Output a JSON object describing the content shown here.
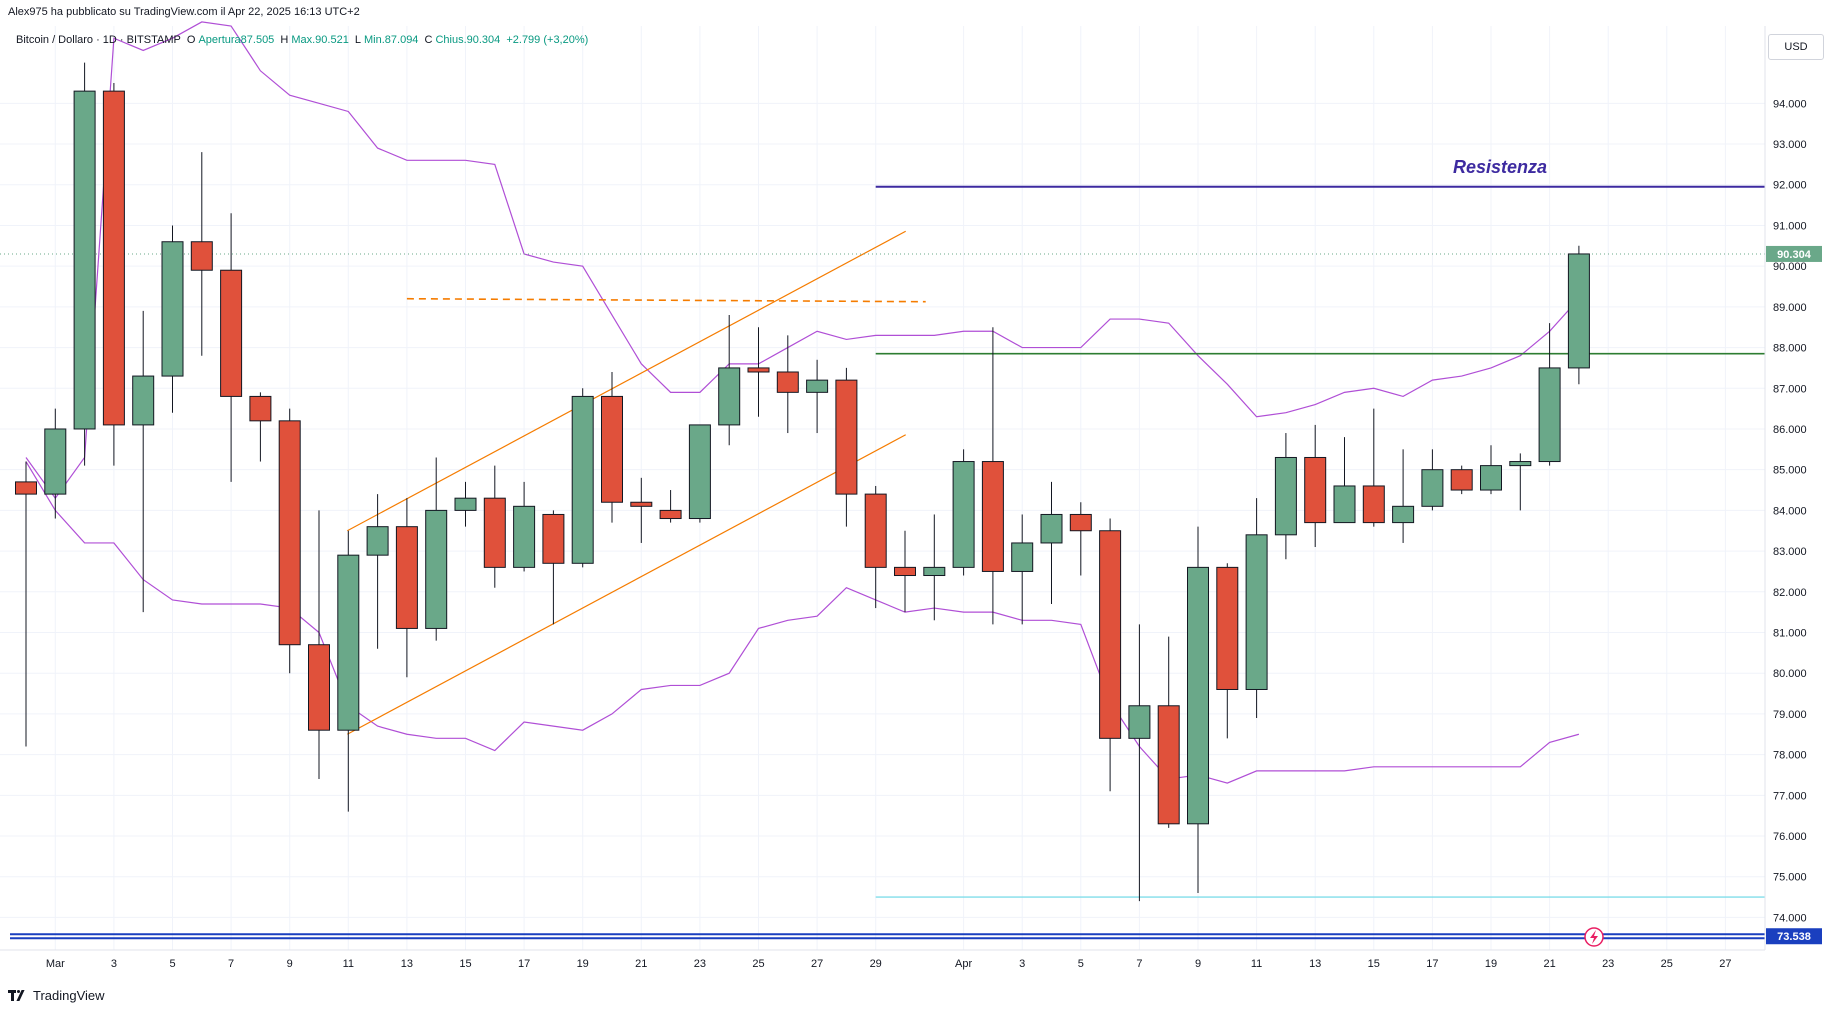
{
  "header": {
    "published": "Alex975 ha pubblicato su TradingView.com il Apr 22, 2025 16:13 UTC+2"
  },
  "legend": {
    "symbol": "Bitcoin / Dollaro · 1D · BITSTAMP",
    "open_label": "O",
    "open": "Apertura87.505",
    "high_label": "H",
    "high": "Max.90.521",
    "low_label": "L",
    "low": "Min.87.094",
    "close_label": "C",
    "close": "Chius.90.304",
    "change": "+2.799 (+3,20%)"
  },
  "currency": "USD",
  "footer": {
    "brand": "TradingView"
  },
  "colors": {
    "up": "#6aa889",
    "down": "#e0513b",
    "band": "#b04fd6",
    "channel": "#f57c00",
    "resistance": "#3d2aa0",
    "support": "#2e7d32",
    "low_line": "#80deea",
    "bottom_line": "#1a3fbf"
  },
  "chart_data": {
    "type": "candlestick",
    "y_unit": "thousand USD",
    "ylim": [
      73.2,
      95.9
    ],
    "yticks": [
      "94.000",
      "93.000",
      "92.000",
      "91.000",
      "90.000",
      "89.000",
      "88.000",
      "87.000",
      "86.000",
      "85.000",
      "84.000",
      "83.000",
      "82.000",
      "81.000",
      "80.000",
      "79.000",
      "78.000",
      "77.000",
      "76.000",
      "75.000",
      "74.000"
    ],
    "xticks": [
      "Mar",
      "3",
      "5",
      "7",
      "9",
      "11",
      "13",
      "15",
      "17",
      "19",
      "21",
      "23",
      "25",
      "27",
      "29",
      "Apr",
      "3",
      "5",
      "7",
      "9",
      "11",
      "13",
      "15",
      "17",
      "19",
      "21",
      "23",
      "25",
      "27"
    ],
    "candles": [
      {
        "d": "Feb 28",
        "o": 84.7,
        "h": 85.2,
        "l": 78.2,
        "c": 84.4
      },
      {
        "d": "Mar 1",
        "o": 84.4,
        "h": 86.5,
        "l": 83.8,
        "c": 86.0
      },
      {
        "d": "Mar 2",
        "o": 86.0,
        "h": 95.0,
        "l": 85.1,
        "c": 94.3
      },
      {
        "d": "Mar 3",
        "o": 94.3,
        "h": 94.5,
        "l": 85.1,
        "c": 86.1
      },
      {
        "d": "Mar 4",
        "o": 86.1,
        "h": 88.9,
        "l": 81.5,
        "c": 87.3
      },
      {
        "d": "Mar 5",
        "o": 87.3,
        "h": 91.0,
        "l": 86.4,
        "c": 90.6
      },
      {
        "d": "Mar 6",
        "o": 90.6,
        "h": 92.8,
        "l": 87.8,
        "c": 89.9
      },
      {
        "d": "Mar 7",
        "o": 89.9,
        "h": 91.3,
        "l": 84.7,
        "c": 86.8
      },
      {
        "d": "Mar 8",
        "o": 86.8,
        "h": 86.9,
        "l": 85.2,
        "c": 86.2
      },
      {
        "d": "Mar 9",
        "o": 86.2,
        "h": 86.5,
        "l": 80.0,
        "c": 80.7
      },
      {
        "d": "Mar 10",
        "o": 80.7,
        "h": 84.0,
        "l": 77.4,
        "c": 78.6
      },
      {
        "d": "Mar 11",
        "o": 78.6,
        "h": 83.5,
        "l": 76.6,
        "c": 82.9
      },
      {
        "d": "Mar 12",
        "o": 82.9,
        "h": 84.4,
        "l": 80.6,
        "c": 83.6
      },
      {
        "d": "Mar 13",
        "o": 83.6,
        "h": 84.3,
        "l": 79.9,
        "c": 81.1
      },
      {
        "d": "Mar 14",
        "o": 81.1,
        "h": 85.3,
        "l": 80.8,
        "c": 84.0
      },
      {
        "d": "Mar 15",
        "o": 84.0,
        "h": 84.7,
        "l": 83.6,
        "c": 84.3
      },
      {
        "d": "Mar 16",
        "o": 84.3,
        "h": 85.1,
        "l": 82.1,
        "c": 82.6
      },
      {
        "d": "Mar 17",
        "o": 82.6,
        "h": 84.7,
        "l": 82.5,
        "c": 84.1
      },
      {
        "d": "Mar 18",
        "o": 83.9,
        "h": 84.0,
        "l": 81.2,
        "c": 82.7
      },
      {
        "d": "Mar 19",
        "o": 82.7,
        "h": 87.0,
        "l": 82.6,
        "c": 86.8
      },
      {
        "d": "Mar 20",
        "o": 86.8,
        "h": 87.4,
        "l": 83.7,
        "c": 84.2
      },
      {
        "d": "Mar 21",
        "o": 84.2,
        "h": 84.8,
        "l": 83.2,
        "c": 84.1
      },
      {
        "d": "Mar 22",
        "o": 84.0,
        "h": 84.5,
        "l": 83.7,
        "c": 83.8
      },
      {
        "d": "Mar 23",
        "o": 83.8,
        "h": 86.1,
        "l": 83.7,
        "c": 86.1
      },
      {
        "d": "Mar 24",
        "o": 86.1,
        "h": 88.8,
        "l": 85.6,
        "c": 87.5
      },
      {
        "d": "Mar 25",
        "o": 87.5,
        "h": 88.5,
        "l": 86.3,
        "c": 87.4
      },
      {
        "d": "Mar 26",
        "o": 87.4,
        "h": 88.3,
        "l": 85.9,
        "c": 86.9
      },
      {
        "d": "Mar 27",
        "o": 86.9,
        "h": 87.7,
        "l": 85.9,
        "c": 87.2
      },
      {
        "d": "Mar 28",
        "o": 87.2,
        "h": 87.5,
        "l": 83.6,
        "c": 84.4
      },
      {
        "d": "Mar 29",
        "o": 84.4,
        "h": 84.6,
        "l": 81.6,
        "c": 82.6
      },
      {
        "d": "Mar 30",
        "o": 82.6,
        "h": 83.5,
        "l": 81.5,
        "c": 82.4
      },
      {
        "d": "Mar 31",
        "o": 82.4,
        "h": 83.9,
        "l": 81.3,
        "c": 82.6
      },
      {
        "d": "Apr 1",
        "o": 82.6,
        "h": 85.5,
        "l": 82.4,
        "c": 85.2
      },
      {
        "d": "Apr 2",
        "o": 85.2,
        "h": 88.5,
        "l": 81.2,
        "c": 82.5
      },
      {
        "d": "Apr 3",
        "o": 82.5,
        "h": 83.9,
        "l": 81.2,
        "c": 83.2
      },
      {
        "d": "Apr 4",
        "o": 83.2,
        "h": 84.7,
        "l": 81.7,
        "c": 83.9
      },
      {
        "d": "Apr 5",
        "o": 83.9,
        "h": 84.2,
        "l": 82.4,
        "c": 83.5
      },
      {
        "d": "Apr 6",
        "o": 83.5,
        "h": 83.8,
        "l": 77.1,
        "c": 78.4
      },
      {
        "d": "Apr 7",
        "o": 78.4,
        "h": 81.2,
        "l": 74.4,
        "c": 79.2
      },
      {
        "d": "Apr 8",
        "o": 79.2,
        "h": 80.9,
        "l": 76.2,
        "c": 76.3
      },
      {
        "d": "Apr 9",
        "o": 76.3,
        "h": 83.6,
        "l": 74.6,
        "c": 82.6
      },
      {
        "d": "Apr 10",
        "o": 82.6,
        "h": 82.7,
        "l": 78.4,
        "c": 79.6
      },
      {
        "d": "Apr 11",
        "o": 79.6,
        "h": 84.3,
        "l": 78.9,
        "c": 83.4
      },
      {
        "d": "Apr 12",
        "o": 83.4,
        "h": 85.9,
        "l": 82.8,
        "c": 85.3
      },
      {
        "d": "Apr 13",
        "o": 85.3,
        "h": 86.1,
        "l": 83.1,
        "c": 83.7
      },
      {
        "d": "Apr 14",
        "o": 83.7,
        "h": 85.8,
        "l": 83.7,
        "c": 84.6
      },
      {
        "d": "Apr 15",
        "o": 84.6,
        "h": 86.5,
        "l": 83.6,
        "c": 83.7
      },
      {
        "d": "Apr 16",
        "o": 83.7,
        "h": 85.5,
        "l": 83.2,
        "c": 84.1
      },
      {
        "d": "Apr 17",
        "o": 84.1,
        "h": 85.5,
        "l": 84.0,
        "c": 85.0
      },
      {
        "d": "Apr 18",
        "o": 85.0,
        "h": 85.1,
        "l": 84.4,
        "c": 84.5
      },
      {
        "d": "Apr 19",
        "o": 84.5,
        "h": 85.6,
        "l": 84.4,
        "c": 85.1
      },
      {
        "d": "Apr 20",
        "o": 85.1,
        "h": 85.4,
        "l": 84.0,
        "c": 85.2
      },
      {
        "d": "Apr 21",
        "o": 85.2,
        "h": 88.6,
        "l": 85.1,
        "c": 87.5
      },
      {
        "d": "Apr 22",
        "o": 87.5,
        "h": 90.5,
        "l": 87.1,
        "c": 90.3
      }
    ],
    "upper_band": [
      85.3,
      84.3,
      85.3,
      95.6,
      95.3,
      95.6,
      96.0,
      95.9,
      94.8,
      94.2,
      94.0,
      93.8,
      92.9,
      92.6,
      92.6,
      92.6,
      92.5,
      90.3,
      90.1,
      90.0,
      88.8,
      87.6,
      86.9,
      86.9,
      87.6,
      87.6,
      88.0,
      88.4,
      88.2,
      88.3,
      88.3,
      88.3,
      88.4,
      88.4,
      88.0,
      88.0,
      88.0,
      88.7,
      88.7,
      88.6,
      87.8,
      87.1,
      86.3,
      86.4,
      86.6,
      86.9,
      87.0,
      86.8,
      87.2,
      87.3,
      87.5,
      87.8,
      88.4,
      89.2
    ],
    "lower_band": [
      85.2,
      84.0,
      83.2,
      83.2,
      82.3,
      81.8,
      81.7,
      81.7,
      81.7,
      81.6,
      81.0,
      79.2,
      78.7,
      78.5,
      78.4,
      78.4,
      78.1,
      78.8,
      78.7,
      78.6,
      79.0,
      79.6,
      79.7,
      79.7,
      80.0,
      81.1,
      81.3,
      81.4,
      82.1,
      81.8,
      81.5,
      81.6,
      81.5,
      81.5,
      81.3,
      81.3,
      81.2,
      79.3,
      78.2,
      77.4,
      77.5,
      77.3,
      77.6,
      77.6,
      77.6,
      77.6,
      77.7,
      77.7,
      77.7,
      77.7,
      77.7,
      77.7,
      78.3,
      78.5
    ],
    "lines": [
      {
        "name": "Resistenza",
        "from": "Mar 29",
        "value": 91.95
      },
      {
        "name": "",
        "from": "Mar 29",
        "value": 87.85
      },
      {
        "name": "",
        "from": "Mar 29",
        "value": 74.5
      },
      {
        "name": "",
        "from": "Feb 28",
        "value": 73.538
      },
      {
        "name": "",
        "from": "Mar 13",
        "to": "Mar 29",
        "value": 89.2
      },
      {
        "name": "",
        "from": "Mar 11",
        "to": "Mar 29",
        "value_from": 83.5,
        "value_to": 91.3
      },
      {
        "name": "",
        "from": "Mar 11",
        "to": "Mar 29",
        "value_from": 78.5,
        "value_to": 86.3
      }
    ],
    "price_labels": [
      {
        "text": "90.304",
        "kind": "last"
      },
      {
        "text": "73.538",
        "kind": "level"
      }
    ]
  }
}
